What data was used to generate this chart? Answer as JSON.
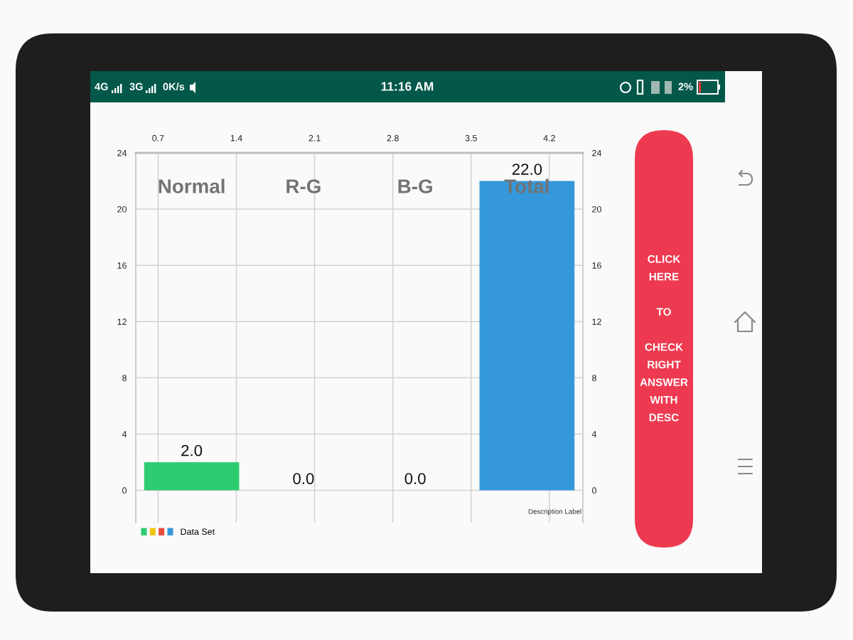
{
  "chart_data": {
    "type": "bar",
    "x": [
      1,
      2,
      3,
      4
    ],
    "series": [
      {
        "name": "Data Set",
        "values": [
          2,
          0,
          0,
          22
        ],
        "colors": [
          "#2ecc71",
          "#f1c40f",
          "#e74c3c",
          "#3498db"
        ],
        "value_labels": [
          "2.0",
          "0.0",
          "0.0",
          "22.0"
        ]
      }
    ],
    "xlim": [
      0.5,
      4.5
    ],
    "xticks": [
      0.7,
      1.4,
      2.1,
      2.8,
      3.5,
      4.2
    ],
    "ylim": [
      -2.3,
      24
    ],
    "yticks": [
      0,
      4,
      8,
      12,
      16,
      20,
      24
    ],
    "y2lim": [
      -2.3,
      24
    ],
    "y2ticks": [
      0,
      4,
      8,
      12,
      16,
      20,
      24
    ],
    "grid": true,
    "legend": "bottom left",
    "annotations": [
      "Normal",
      "R-G",
      "B-G",
      "Total",
      "Description Label",
      "4G",
      "3G",
      "0K/s",
      "11:16 AM",
      "2%",
      "CLICK\nHERE\n\nTO\n\nCHECK\nRIGHT\nANSWER\nWITH\nDESC"
    ]
  }
}
